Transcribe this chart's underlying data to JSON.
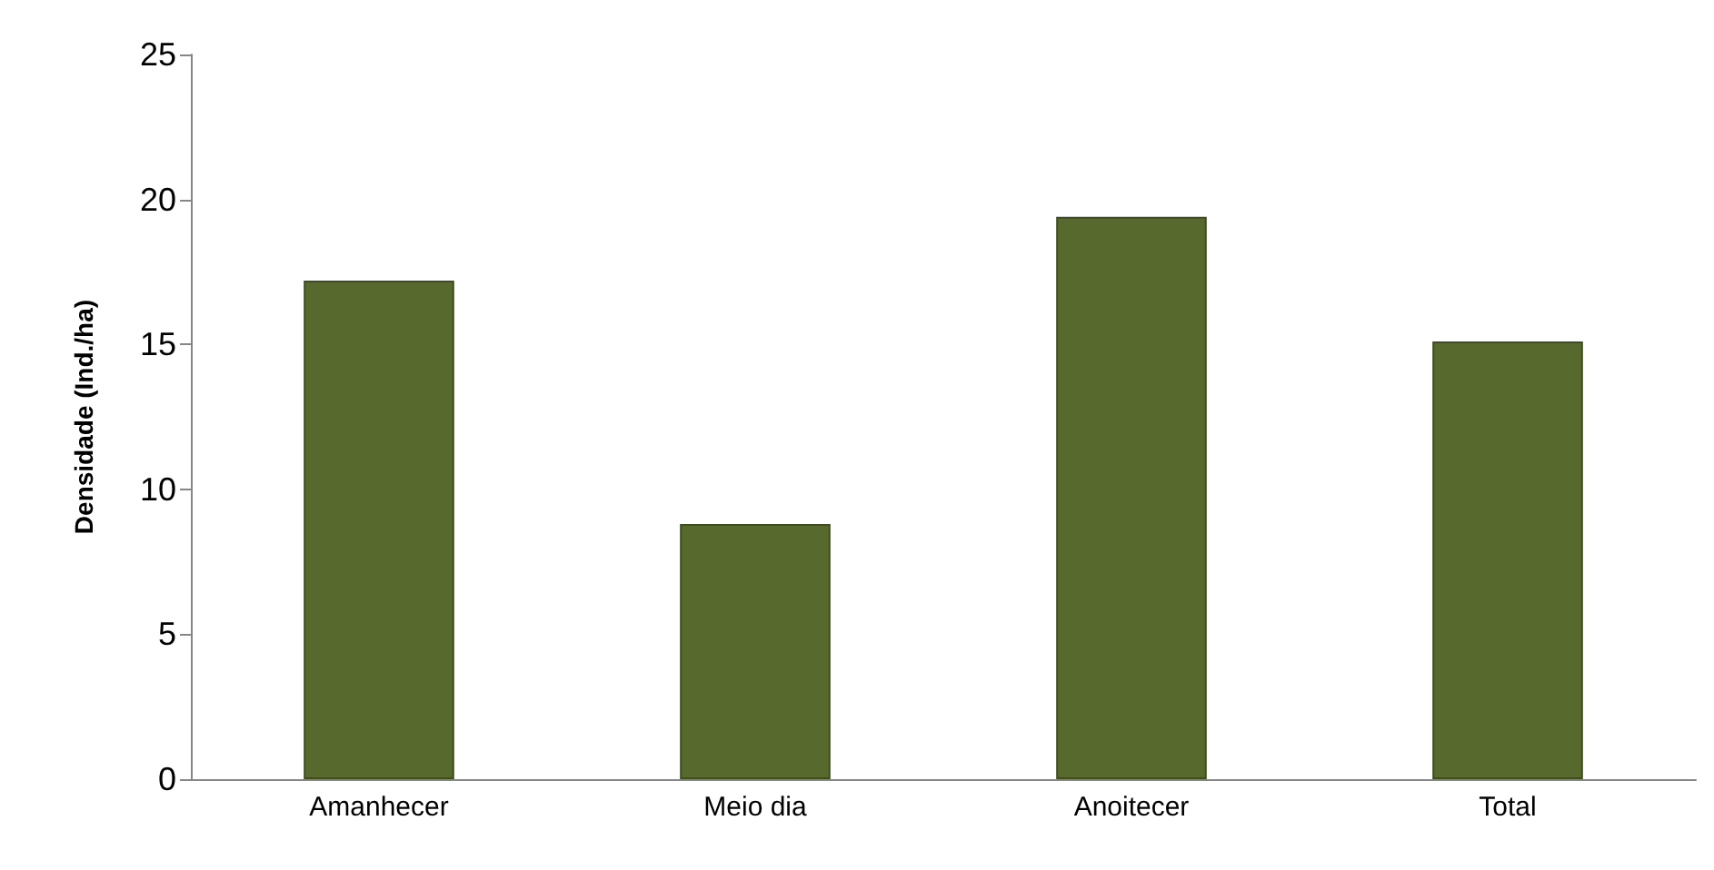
{
  "chart_data": {
    "type": "bar",
    "ylabel": "Densidade (Ind./ha)",
    "categories": [
      "Amanhecer",
      "Meio dia",
      "Anoitecer",
      "Total"
    ],
    "values": [
      17.2,
      8.8,
      19.4,
      15.1
    ],
    "color": "#58692d",
    "ylim": [
      0,
      25
    ],
    "yticks": [
      0,
      5,
      10,
      15,
      20,
      25
    ],
    "grid": false
  }
}
